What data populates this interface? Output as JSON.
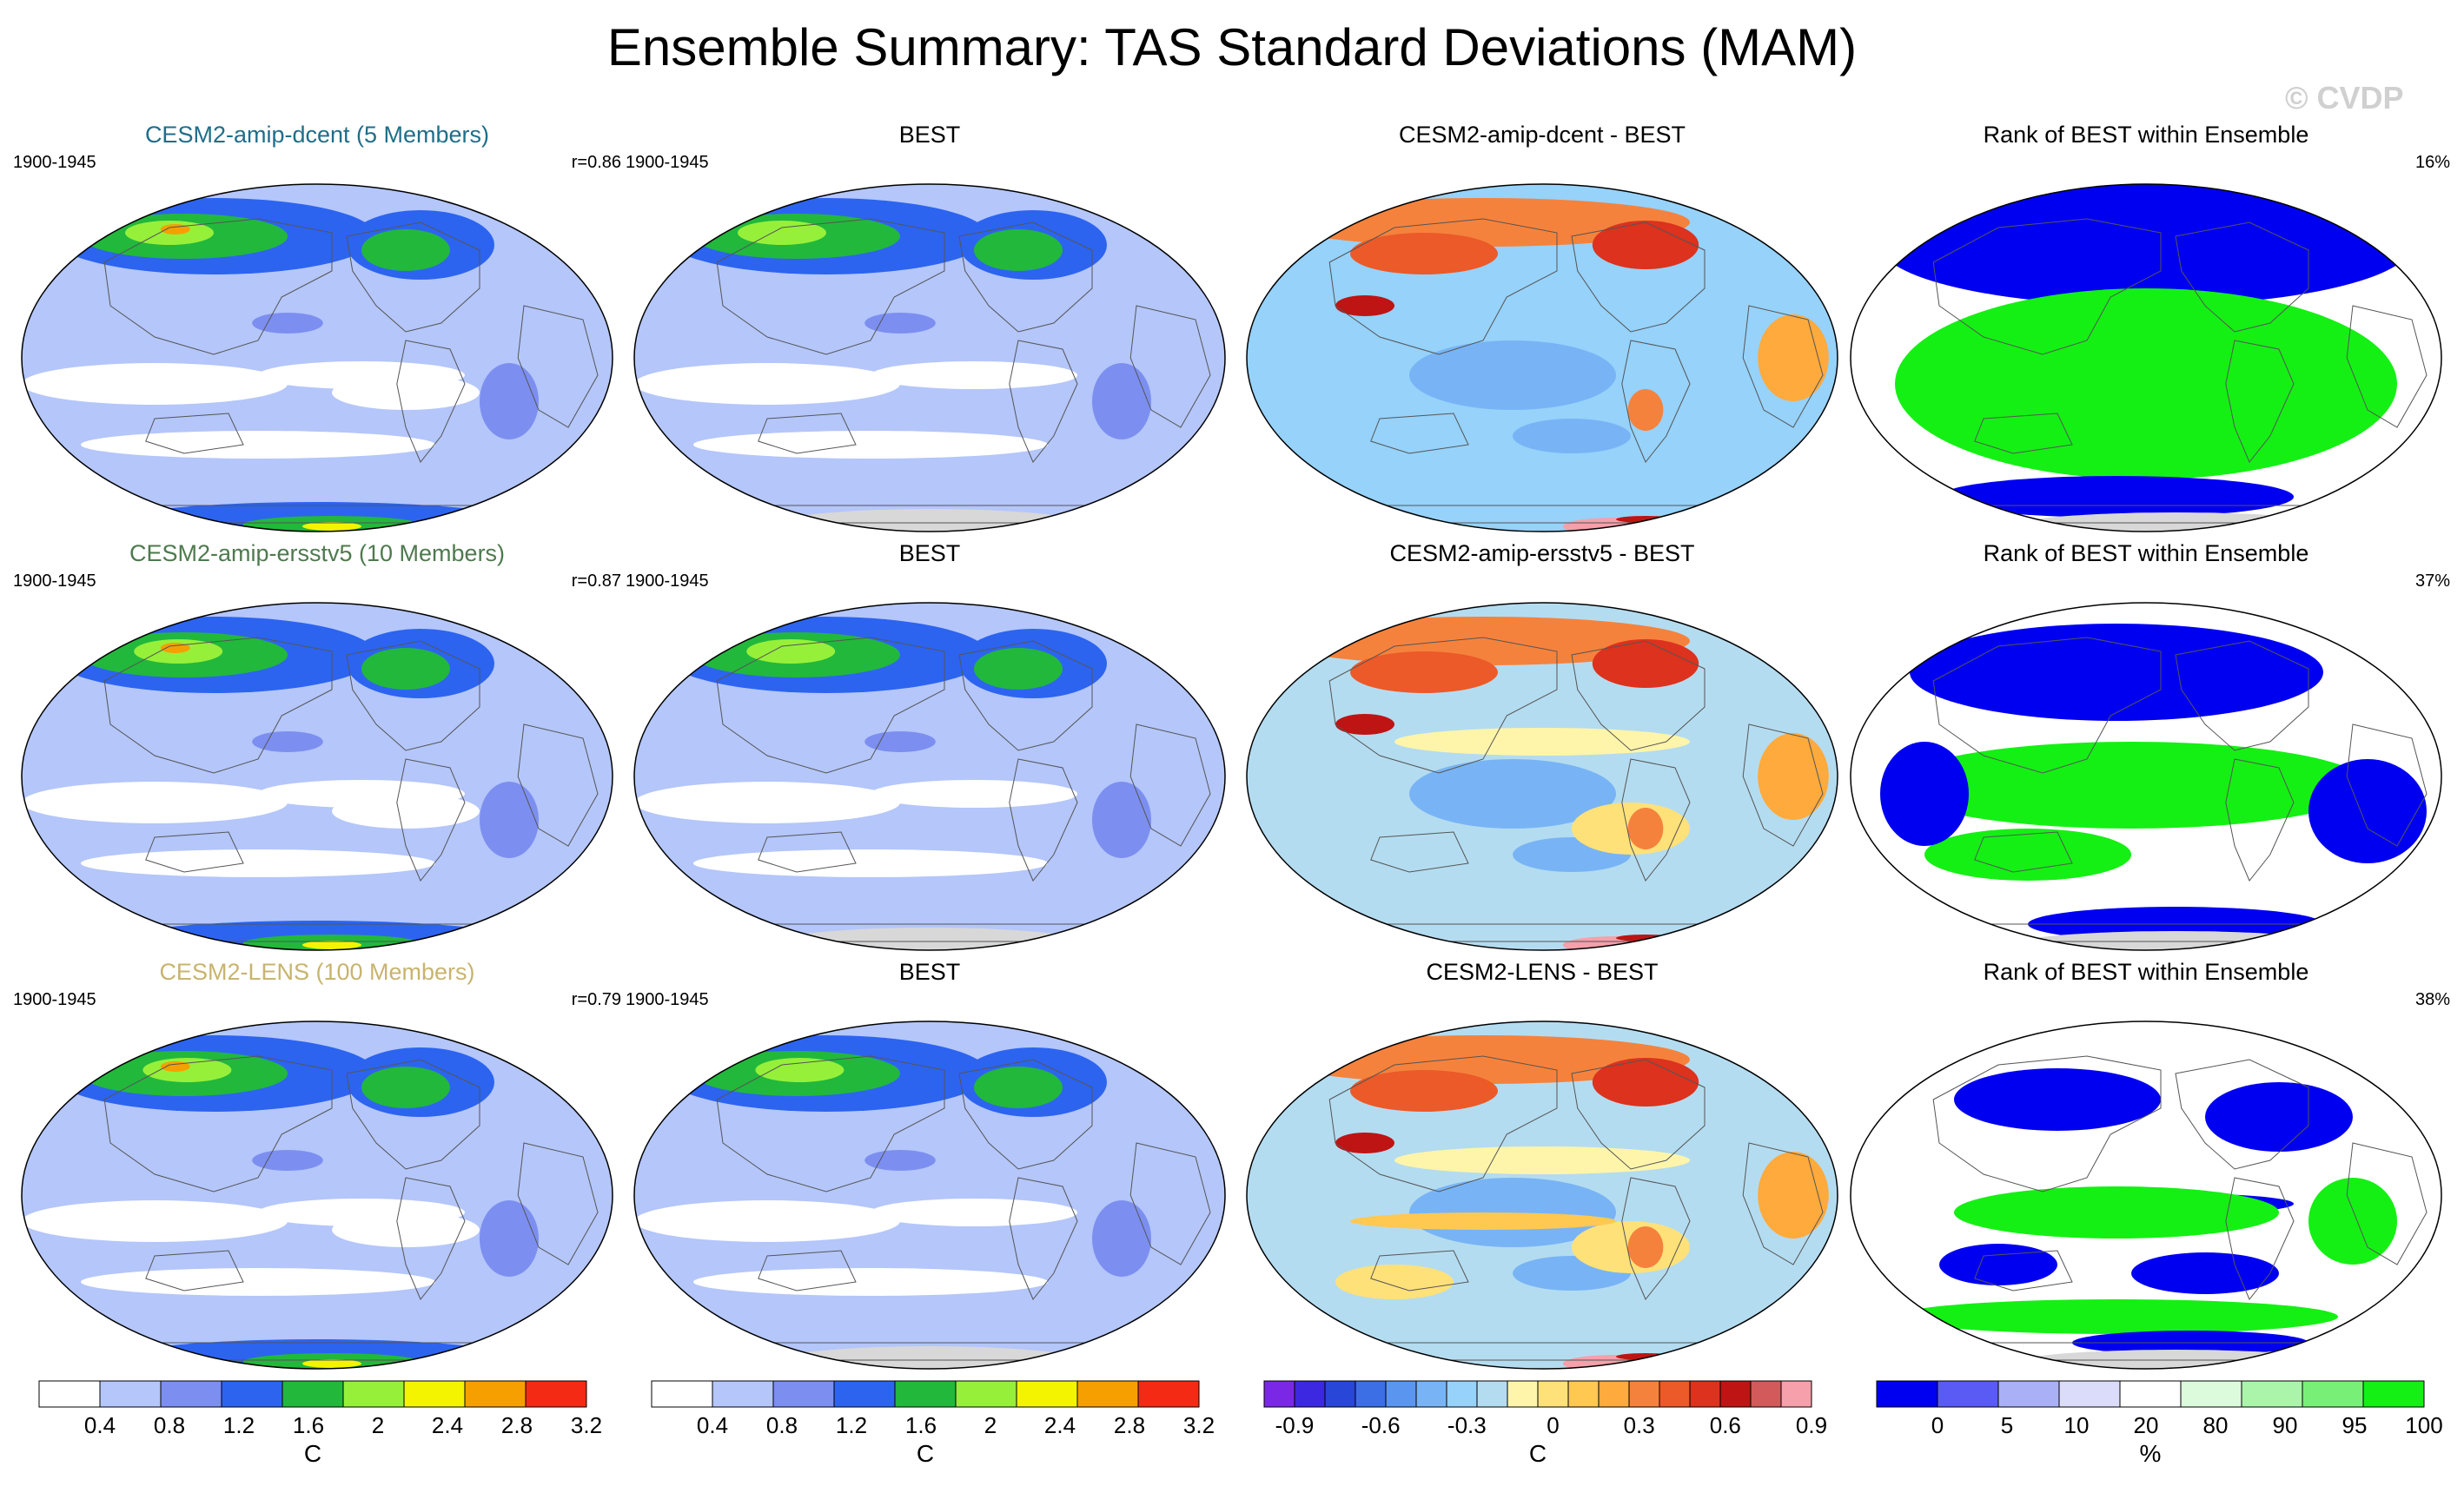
{
  "title": "Ensemble Summary: TAS Standard Deviations (MAM)",
  "watermark": "© CVDP",
  "colors": {
    "std": [
      "#ffffff",
      "#b4c6fa",
      "#7c8ff0",
      "#2c64f0",
      "#22b83c",
      "#96f03a",
      "#f4f400",
      "#f5a000",
      "#f42a14"
    ],
    "diff": [
      "#7a28e6",
      "#3c28e0",
      "#2846d8",
      "#3c6ee6",
      "#5a96f0",
      "#78b4f5",
      "#96d2fa",
      "#b4dcf0",
      "#fff5aa",
      "#ffe17a",
      "#ffc850",
      "#ffaa3c",
      "#f5823c",
      "#eb5a28",
      "#dc321e",
      "#be1414",
      "#d25a5a",
      "#f5a0aa"
    ],
    "rank": [
      "#0000f0",
      "#5a5af5",
      "#aab0f5",
      "#dadcfa",
      "#ffffff",
      "#dcfadc",
      "#aaf5aa",
      "#78f078",
      "#14f014"
    ],
    "land": "#d8d8d8",
    "ens_title_1": "#1f6e8a",
    "ens_title_2": "#4e7a4e",
    "ens_title_3": "#c8b46e"
  },
  "rows": [
    {
      "ens_title": "CESM2-amip-dcent (5 Members)",
      "ens_years": "1900-1945",
      "ens_r": "r=0.86",
      "obs_title": "BEST",
      "obs_years": "1900-1945",
      "diff_title": "CESM2-amip-dcent - BEST",
      "rank_title": "Rank of BEST within Ensemble",
      "rank_pct": "16%"
    },
    {
      "ens_title": "CESM2-amip-ersstv5 (10 Members)",
      "ens_years": "1900-1945",
      "ens_r": "r=0.87",
      "obs_title": "BEST",
      "obs_years": "1900-1945",
      "diff_title": "CESM2-amip-ersstv5 - BEST",
      "rank_title": "Rank of BEST within Ensemble",
      "rank_pct": "37%"
    },
    {
      "ens_title": "CESM2-LENS (100 Members)",
      "ens_years": "1900-1945",
      "ens_r": "r=0.79",
      "obs_title": "BEST",
      "obs_years": "1900-1945",
      "diff_title": "CESM2-LENS - BEST",
      "rank_title": "Rank of BEST within Ensemble",
      "rank_pct": "38%"
    }
  ],
  "colorbars": {
    "std": {
      "labels": [
        "0.4",
        "0.8",
        "1.2",
        "1.6",
        "2",
        "2.4",
        "2.8",
        "3.2"
      ],
      "unit": "C"
    },
    "diff": {
      "labels": [
        "-0.9",
        "-0.6",
        "-0.3",
        "0",
        "0.3",
        "0.6",
        "0.9"
      ],
      "unit": "C"
    },
    "rank": {
      "labels": [
        "0",
        "5",
        "10",
        "20",
        "80",
        "90",
        "95",
        "100"
      ],
      "unit": "%"
    }
  },
  "chart_data": [
    {
      "type": "heatmap",
      "title": "CESM2-amip-dcent (5 Members)",
      "period": "1900-1945",
      "pattern_correlation": 0.86,
      "variable": "TAS standard deviation (MAM)",
      "units": "C",
      "levels": [
        0.4,
        0.8,
        1.2,
        1.6,
        2,
        2.4,
        2.8,
        3.2
      ]
    },
    {
      "type": "heatmap",
      "title": "BEST",
      "period": "1900-1945",
      "variable": "TAS standard deviation (MAM)",
      "units": "C",
      "levels": [
        0.4,
        0.8,
        1.2,
        1.6,
        2,
        2.4,
        2.8,
        3.2
      ]
    },
    {
      "type": "heatmap",
      "title": "CESM2-amip-dcent - BEST",
      "variable": "TAS standard deviation difference",
      "units": "C",
      "levels": [
        -0.9,
        -0.6,
        -0.3,
        0,
        0.3,
        0.6,
        0.9
      ]
    },
    {
      "type": "heatmap",
      "title": "Rank of BEST within Ensemble",
      "units": "%",
      "value_label": "16%",
      "levels": [
        0,
        5,
        10,
        20,
        80,
        90,
        95,
        100
      ]
    },
    {
      "type": "heatmap",
      "title": "CESM2-amip-ersstv5 (10 Members)",
      "period": "1900-1945",
      "pattern_correlation": 0.87,
      "variable": "TAS standard deviation (MAM)",
      "units": "C",
      "levels": [
        0.4,
        0.8,
        1.2,
        1.6,
        2,
        2.4,
        2.8,
        3.2
      ]
    },
    {
      "type": "heatmap",
      "title": "BEST",
      "period": "1900-1945",
      "variable": "TAS standard deviation (MAM)",
      "units": "C",
      "levels": [
        0.4,
        0.8,
        1.2,
        1.6,
        2,
        2.4,
        2.8,
        3.2
      ]
    },
    {
      "type": "heatmap",
      "title": "CESM2-amip-ersstv5 - BEST",
      "variable": "TAS standard deviation difference",
      "units": "C",
      "levels": [
        -0.9,
        -0.6,
        -0.3,
        0,
        0.3,
        0.6,
        0.9
      ]
    },
    {
      "type": "heatmap",
      "title": "Rank of BEST within Ensemble",
      "units": "%",
      "value_label": "37%",
      "levels": [
        0,
        5,
        10,
        20,
        80,
        90,
        95,
        100
      ]
    },
    {
      "type": "heatmap",
      "title": "CESM2-LENS (100 Members)",
      "period": "1900-1945",
      "pattern_correlation": 0.79,
      "variable": "TAS standard deviation (MAM)",
      "units": "C",
      "levels": [
        0.4,
        0.8,
        1.2,
        1.6,
        2,
        2.4,
        2.8,
        3.2
      ]
    },
    {
      "type": "heatmap",
      "title": "BEST",
      "period": "1900-1945",
      "variable": "TAS standard deviation (MAM)",
      "units": "C",
      "levels": [
        0.4,
        0.8,
        1.2,
        1.6,
        2,
        2.4,
        2.8,
        3.2
      ]
    },
    {
      "type": "heatmap",
      "title": "CESM2-LENS - BEST",
      "variable": "TAS standard deviation difference",
      "units": "C",
      "levels": [
        -0.9,
        -0.6,
        -0.3,
        0,
        0.3,
        0.6,
        0.9
      ]
    },
    {
      "type": "heatmap",
      "title": "Rank of BEST within Ensemble",
      "units": "%",
      "value_label": "38%",
      "levels": [
        0,
        5,
        10,
        20,
        80,
        90,
        95,
        100
      ]
    }
  ]
}
